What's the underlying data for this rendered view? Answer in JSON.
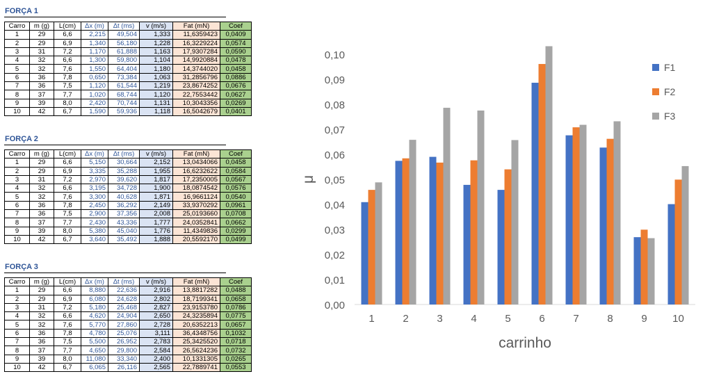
{
  "tables": [
    {
      "title": "FORÇA 1",
      "headers": [
        "Carro",
        "m (g)",
        "L(cm)",
        "Δx (m)",
        "Δt (ms)",
        "v (m/s)",
        "Fat (mN)",
        "Coef"
      ],
      "rows": [
        [
          "1",
          "29",
          "6,6",
          "2,215",
          "49,504",
          "1,333",
          "11,6359423",
          "0,0409"
        ],
        [
          "2",
          "29",
          "6,9",
          "1,340",
          "56,180",
          "1,228",
          "16,3229224",
          "0,0574"
        ],
        [
          "3",
          "31",
          "7,2",
          "1,170",
          "61,888",
          "1,163",
          "17,9307284",
          "0,0590"
        ],
        [
          "4",
          "32",
          "6,6",
          "1,300",
          "59,800",
          "1,104",
          "14,9920884",
          "0,0478"
        ],
        [
          "5",
          "32",
          "7,6",
          "1,550",
          "64,404",
          "1,180",
          "14,3744020",
          "0,0458"
        ],
        [
          "6",
          "36",
          "7,8",
          "0,650",
          "73,384",
          "1,063",
          "31,2856796",
          "0,0886"
        ],
        [
          "7",
          "36",
          "7,5",
          "1,120",
          "61,544",
          "1,219",
          "23,8674252",
          "0,0676"
        ],
        [
          "8",
          "37",
          "7,7",
          "1,020",
          "68,744",
          "1,120",
          "22,7553442",
          "0,0627"
        ],
        [
          "9",
          "39",
          "8,0",
          "2,420",
          "70,744",
          "1,131",
          "10,3043356",
          "0,0269"
        ],
        [
          "10",
          "42",
          "6,7",
          "1,590",
          "59,936",
          "1,118",
          "16,5042679",
          "0,0401"
        ]
      ]
    },
    {
      "title": "FORÇA 2",
      "headers": [
        "Carro",
        "m (g)",
        "L(cm)",
        "Δx (m)",
        "Δt (ms)",
        "v (m/s)",
        "Fat (mN)",
        "Coef"
      ],
      "rows": [
        [
          "1",
          "29",
          "6,6",
          "5,150",
          "30,664",
          "2,152",
          "13,0434066",
          "0,0458"
        ],
        [
          "2",
          "29",
          "6,9",
          "3,335",
          "35,288",
          "1,955",
          "16,6232622",
          "0,0584"
        ],
        [
          "3",
          "31",
          "7,2",
          "2,970",
          "39,620",
          "1,817",
          "17,2350005",
          "0,0567"
        ],
        [
          "4",
          "32",
          "6,6",
          "3,195",
          "34,728",
          "1,900",
          "18,0874542",
          "0,0576"
        ],
        [
          "5",
          "32",
          "7,6",
          "3,300",
          "40,628",
          "1,871",
          "16,9661124",
          "0,0540"
        ],
        [
          "6",
          "36",
          "7,8",
          "2,450",
          "36,292",
          "2,149",
          "33,9370292",
          "0,0961"
        ],
        [
          "7",
          "36",
          "7,5",
          "2,900",
          "37,356",
          "2,008",
          "25,0193660",
          "0,0708"
        ],
        [
          "8",
          "37",
          "7,7",
          "2,430",
          "43,336",
          "1,777",
          "24,0352841",
          "0,0662"
        ],
        [
          "9",
          "39",
          "8,0",
          "5,380",
          "45,040",
          "1,776",
          "11,4349836",
          "0,0299"
        ],
        [
          "10",
          "42",
          "6,7",
          "3,640",
          "35,492",
          "1,888",
          "20,5592170",
          "0,0499"
        ]
      ]
    },
    {
      "title": "FORÇA 3",
      "headers": [
        "Carro",
        "m (g)",
        "L(cm)",
        "Δx (m)",
        "Δt (ms)",
        "v (m/s)",
        "Fat (mN)",
        "Coef"
      ],
      "rows": [
        [
          "1",
          "29",
          "6,6",
          "8,880",
          "22,636",
          "2,916",
          "13,8817282",
          "0,0488"
        ],
        [
          "2",
          "29",
          "6,9",
          "6,080",
          "24,628",
          "2,802",
          "18,7199341",
          "0,0658"
        ],
        [
          "3",
          "31",
          "7,2",
          "5,180",
          "25,468",
          "2,827",
          "23,9153780",
          "0,0786"
        ],
        [
          "4",
          "32",
          "6,6",
          "4,620",
          "24,904",
          "2,650",
          "24,3235894",
          "0,0775"
        ],
        [
          "5",
          "32",
          "7,6",
          "5,770",
          "27,860",
          "2,728",
          "20,6352213",
          "0,0657"
        ],
        [
          "6",
          "36",
          "7,8",
          "4,780",
          "25,076",
          "3,111",
          "36,4348756",
          "0,1032"
        ],
        [
          "7",
          "36",
          "7,5",
          "5,500",
          "26,952",
          "2,783",
          "25,3425520",
          "0,0718"
        ],
        [
          "8",
          "37",
          "7,7",
          "4,650",
          "29,800",
          "2,584",
          "26,5624236",
          "0,0732"
        ],
        [
          "9",
          "39",
          "8,0",
          "11,080",
          "33,340",
          "2,400",
          "10,1331305",
          "0,0265"
        ],
        [
          "10",
          "42",
          "6,7",
          "6,065",
          "26,116",
          "2,565",
          "22,7889741",
          "0,0553"
        ]
      ]
    }
  ],
  "chart_data": {
    "type": "bar",
    "categories": [
      "1",
      "2",
      "3",
      "4",
      "5",
      "6",
      "7",
      "8",
      "9",
      "10"
    ],
    "series": [
      {
        "name": "F1",
        "color": "#4472c4",
        "values": [
          0.0409,
          0.0574,
          0.059,
          0.0478,
          0.0458,
          0.0886,
          0.0676,
          0.0627,
          0.0269,
          0.0401
        ]
      },
      {
        "name": "F2",
        "color": "#ed7d31",
        "values": [
          0.0458,
          0.0584,
          0.0567,
          0.0576,
          0.054,
          0.0961,
          0.0708,
          0.0662,
          0.0299,
          0.0499
        ]
      },
      {
        "name": "F3",
        "color": "#a5a5a5",
        "values": [
          0.0488,
          0.0658,
          0.0786,
          0.0775,
          0.0657,
          0.1032,
          0.0718,
          0.0732,
          0.0265,
          0.0553
        ]
      }
    ],
    "xlabel": "carrinho",
    "ylabel": "μ",
    "ylim": [
      0,
      0.1
    ],
    "yticks": [
      "0,00",
      "0,01",
      "0,02",
      "0,03",
      "0,04",
      "0,05",
      "0,06",
      "0,07",
      "0,08",
      "0,09",
      "0,10"
    ],
    "grid": false,
    "legend": "top-right"
  }
}
